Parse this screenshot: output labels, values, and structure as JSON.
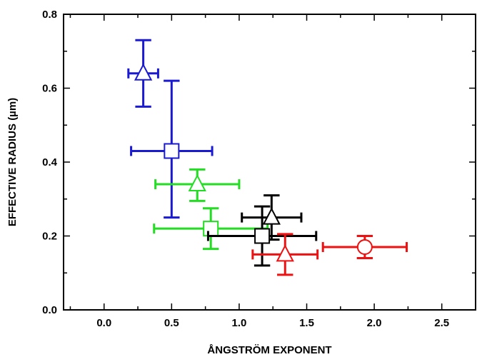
{
  "chart_data": {
    "type": "scatter",
    "title": "",
    "xlabel": "ÅNGSTRÖM EXPONENT",
    "ylabel": "EFFECTIVE RADIUS (µm)",
    "xlim": [
      -0.3,
      2.75
    ],
    "ylim": [
      0,
      0.8
    ],
    "x_ticks": [
      "0.0",
      "0.5",
      "1.0",
      "1.5",
      "2.0",
      "2.5"
    ],
    "y_ticks": [
      "0.0",
      "0.2",
      "0.4",
      "0.6",
      "0.8"
    ],
    "grid": false,
    "points": [
      {
        "x": 0.29,
        "y": 0.64,
        "xerr": 0.11,
        "yerr_low": 0.09,
        "yerr_high": 0.09,
        "marker": "triangle",
        "color": "#1a1ad4"
      },
      {
        "x": 0.5,
        "y": 0.43,
        "xerr": 0.3,
        "yerr_low": 0.18,
        "yerr_high": 0.19,
        "marker": "square",
        "color": "#1a1ad4"
      },
      {
        "x": 0.69,
        "y": 0.34,
        "xerr": 0.31,
        "yerr_low": 0.045,
        "yerr_high": 0.04,
        "marker": "triangle",
        "color": "#22dd22"
      },
      {
        "x": 0.79,
        "y": 0.22,
        "xerr": 0.42,
        "yerr_low": 0.055,
        "yerr_high": 0.055,
        "marker": "square",
        "color": "#22dd22"
      },
      {
        "x": 1.24,
        "y": 0.25,
        "xerr": 0.22,
        "yerr_low": 0.06,
        "yerr_high": 0.06,
        "marker": "triangle",
        "color": "#000000"
      },
      {
        "x": 1.17,
        "y": 0.2,
        "xerr": 0.4,
        "yerr_low": 0.08,
        "yerr_high": 0.08,
        "marker": "square",
        "color": "#000000"
      },
      {
        "x": 1.34,
        "y": 0.15,
        "xerr": 0.24,
        "yerr_low": 0.055,
        "yerr_high": 0.055,
        "marker": "triangle",
        "color": "#ee1111"
      },
      {
        "x": 1.93,
        "y": 0.17,
        "xerr": 0.31,
        "yerr_low": 0.03,
        "yerr_high": 0.03,
        "marker": "circle",
        "color": "#ee1111"
      }
    ]
  }
}
